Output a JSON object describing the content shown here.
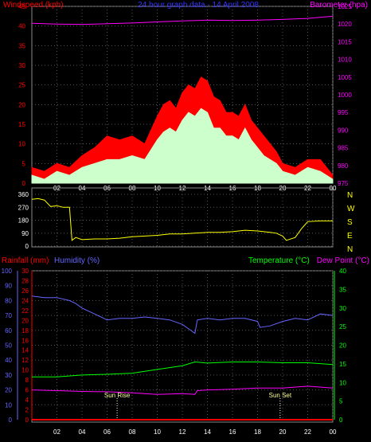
{
  "chart_data": [
    {
      "type": "line",
      "title": "24 hour graph data - 14 April 2008",
      "panel": "wind-pressure",
      "xlabel": "",
      "x_ticks": [
        "02",
        "04",
        "06",
        "08",
        "10",
        "12",
        "14",
        "16",
        "18",
        "20",
        "22",
        "00"
      ],
      "x_range": [
        0,
        24
      ],
      "left_axis": {
        "label": "Windspeed (kph)",
        "color": "#ff0000",
        "range": [
          0,
          45
        ],
        "ticks": [
          0,
          5,
          10,
          15,
          20,
          25,
          30,
          35,
          40,
          45
        ]
      },
      "right_axis": {
        "label": "Barometer (hpa)",
        "color": "#ff00ff",
        "range": [
          975,
          1025
        ],
        "ticks": [
          975,
          980,
          985,
          990,
          995,
          1000,
          1005,
          1010,
          1015,
          1020,
          1025
        ]
      },
      "series": [
        {
          "color": "#ff0000",
          "axis": "left",
          "style": "filled-area",
          "x": [
            0,
            1,
            2,
            3,
            4,
            5,
            6,
            7,
            8,
            9,
            10,
            10.5,
            11,
            11.5,
            12,
            12.5,
            13,
            13.5,
            14,
            14.5,
            15,
            15.5,
            16,
            16.5,
            17,
            17.5,
            18,
            18.5,
            19,
            19.5,
            20,
            21,
            22,
            23,
            24
          ],
          "values": [
            4,
            3,
            5,
            4,
            7,
            9,
            12,
            11,
            12,
            10,
            17,
            20,
            21,
            19,
            23,
            25,
            24,
            27,
            26,
            22,
            21,
            18,
            18,
            17,
            20,
            16,
            14,
            12,
            10,
            8,
            5,
            4,
            6,
            6,
            2
          ]
        },
        {
          "color": "#ccffcc",
          "axis": "left",
          "style": "filled-area",
          "x": [
            0,
            1,
            2,
            3,
            4,
            5,
            6,
            7,
            8,
            9,
            10,
            10.5,
            11,
            11.5,
            12,
            12.5,
            13,
            13.5,
            14,
            14.5,
            15,
            15.5,
            16,
            16.5,
            17,
            17.5,
            18,
            18.5,
            19,
            19.5,
            20,
            21,
            22,
            23,
            24
          ],
          "values": [
            2,
            1,
            3,
            2,
            4,
            5,
            6,
            6,
            7,
            6,
            11,
            13,
            14,
            13,
            16,
            18,
            17,
            19,
            18,
            14,
            14,
            12,
            12,
            11,
            14,
            11,
            9,
            7,
            6,
            5,
            3,
            2,
            4,
            3,
            1
          ]
        },
        {
          "color": "#ff00ff",
          "axis": "right",
          "x": [
            0,
            2,
            4,
            6,
            8,
            10,
            12,
            14,
            16,
            18,
            20,
            22,
            24
          ],
          "values": [
            1020.2,
            1020.0,
            1019.9,
            1020.1,
            1020.3,
            1020.6,
            1020.9,
            1021.1,
            1021.0,
            1021.1,
            1021.3,
            1021.6,
            1022.2
          ]
        }
      ]
    },
    {
      "type": "line",
      "panel": "wind-direction",
      "left_axis": {
        "range": [
          0,
          360
        ],
        "ticks": [
          0,
          90,
          180,
          270,
          360
        ]
      },
      "right_labels": [
        "N",
        "W",
        "S",
        "E",
        "N"
      ],
      "x_range": [
        0,
        24
      ],
      "series": [
        {
          "color": "#ffff00",
          "axis": "left",
          "x": [
            0,
            0.5,
            1,
            1.5,
            2,
            2.5,
            3,
            3.2,
            3.5,
            4,
            5,
            6,
            7,
            8,
            9,
            10,
            11,
            12,
            13,
            14,
            15,
            16,
            17,
            18,
            19,
            19.5,
            20,
            20.3,
            21,
            21.5,
            22,
            23,
            24
          ],
          "values": [
            325,
            330,
            320,
            275,
            280,
            270,
            270,
            40,
            60,
            45,
            50,
            50,
            55,
            65,
            70,
            75,
            85,
            85,
            90,
            95,
            95,
            100,
            110,
            105,
            95,
            90,
            70,
            40,
            60,
            120,
            170,
            175,
            175
          ]
        }
      ]
    },
    {
      "type": "line",
      "panel": "temp-humidity",
      "x_ticks": [
        "02",
        "04",
        "06",
        "08",
        "10",
        "12",
        "14",
        "16",
        "18",
        "20",
        "22",
        "00"
      ],
      "x_range": [
        0,
        24
      ],
      "rainfall_axis": {
        "label": "Rainfall (mm)",
        "color": "#ff0000",
        "range": [
          0,
          30
        ],
        "ticks": [
          0,
          2,
          4,
          6,
          8,
          10,
          12,
          14,
          16,
          18,
          20,
          22,
          24,
          26,
          28,
          30
        ]
      },
      "humidity_axis": {
        "label": "Humidity (%)",
        "color": "#6666ff",
        "range": [
          0,
          100
        ],
        "ticks": [
          0,
          10,
          20,
          30,
          40,
          50,
          60,
          70,
          80,
          90,
          100
        ]
      },
      "temperature_axis": {
        "label": "Temperature (°C)",
        "color": "#00ff00",
        "range": [
          0,
          40
        ],
        "ticks": [
          0,
          5,
          10,
          15,
          20,
          25,
          30,
          35,
          40
        ]
      },
      "dewpoint_label": {
        "label": "Dew Point (°C)",
        "color": "#ff00ff"
      },
      "annotations": [
        {
          "label": "Sun Rise",
          "x": 6.8
        },
        {
          "label": "Sun Set",
          "x": 19.8
        }
      ],
      "series": [
        {
          "color": "#6666ff",
          "axis": "humidity",
          "x": [
            0,
            1,
            2,
            3,
            3.5,
            4,
            5,
            6,
            7,
            8,
            9,
            10,
            11,
            12,
            12.5,
            13,
            13.2,
            14,
            15,
            16,
            17,
            18,
            18.2,
            19,
            20,
            21,
            22,
            23,
            24
          ],
          "values": [
            83,
            82,
            82,
            80,
            78,
            75,
            71,
            67,
            68,
            68,
            69,
            68,
            67,
            64,
            61,
            58,
            67,
            68,
            67,
            68,
            68,
            66,
            62,
            63,
            66,
            68,
            67,
            71,
            70
          ]
        },
        {
          "color": "#00ff00",
          "axis": "temperature",
          "x": [
            0,
            2,
            4,
            6,
            8,
            10,
            12,
            13,
            14,
            16,
            18,
            20,
            22,
            24
          ],
          "values": [
            11.5,
            11.5,
            12,
            12.2,
            12.5,
            13.5,
            14.5,
            15.5,
            15.2,
            15.5,
            15.5,
            15.3,
            15.3,
            14.8
          ]
        },
        {
          "color": "#ff00ff",
          "axis": "temperature",
          "x": [
            0,
            2,
            4,
            6,
            8,
            10,
            12,
            13,
            13.2,
            14,
            16,
            18,
            20,
            22,
            24
          ],
          "values": [
            8,
            7.8,
            7.6,
            7.5,
            7.2,
            6.8,
            7,
            6.8,
            7.8,
            8,
            8.2,
            8.5,
            8.5,
            9,
            8.5
          ]
        },
        {
          "color": "#ff0000",
          "axis": "rainfall",
          "x": [
            0,
            24
          ],
          "values": [
            0,
            0
          ]
        }
      ]
    }
  ]
}
